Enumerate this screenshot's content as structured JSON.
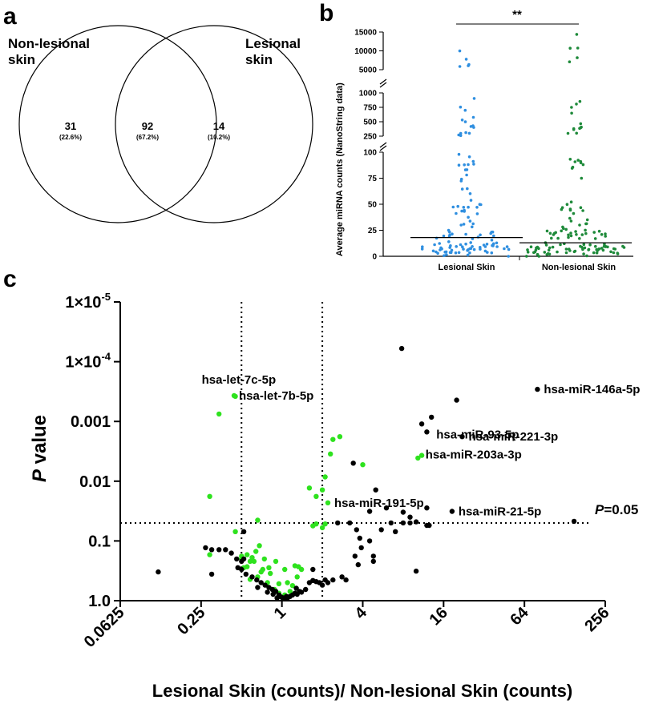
{
  "panels": {
    "a": "a",
    "b": "b",
    "c": "c"
  },
  "chart_data": [
    {
      "type": "venn",
      "sets": [
        "Non-lesional skin",
        "Lesional skin"
      ],
      "set_label_lines": {
        "left": [
          "Non-lesional",
          "skin"
        ],
        "right": [
          "Lesional",
          "skin"
        ]
      },
      "regions": [
        {
          "region": "non-lesional only",
          "count": "31",
          "percent": "(22.6%)"
        },
        {
          "region": "both",
          "count": "92",
          "percent": "(67.2%)"
        },
        {
          "region": "lesional only",
          "count": "14",
          "percent": "(10.2%)"
        }
      ]
    },
    {
      "type": "scatter",
      "ylabel": "Average miRNA counts (NanoString data)",
      "categories": [
        "Lesional Skin",
        "Non-lesional Skin"
      ],
      "y_axis_segments": [
        {
          "range": [
            0,
            100
          ],
          "ticks": [
            "0",
            "25",
            "50",
            "75",
            "100"
          ]
        },
        {
          "range": [
            250,
            1000
          ],
          "ticks": [
            "250",
            "500",
            "750",
            "1000"
          ]
        },
        {
          "range": [
            5000,
            15000
          ],
          "ticks": [
            "5000",
            "10000",
            "15000"
          ]
        }
      ],
      "medians": [
        18,
        13
      ],
      "significance": "**",
      "colors": [
        "#2f8fe0",
        "#1e8a3a"
      ]
    },
    {
      "type": "scatter",
      "xlabel": "Lesional Skin (counts)/ Non-lesional Skin (counts)",
      "ylabel_italic": "P",
      "ylabel_rest": " value",
      "x_scale": "log2",
      "y_scale": "log10-reversed",
      "xlim": [
        0.0625,
        256
      ],
      "ylim": [
        1.0,
        1e-05
      ],
      "x_ticks": [
        "0.0625",
        "0.25",
        "1",
        "4",
        "16",
        "64",
        "256"
      ],
      "y_ticks": [
        {
          "base": "1×10",
          "exp": "-5"
        },
        {
          "base": "1×10",
          "exp": "-4"
        },
        {
          "base": "0.001",
          "exp": ""
        },
        {
          "base": "0.01",
          "exp": ""
        },
        {
          "base": "0.1",
          "exp": ""
        },
        {
          "base": "1.0",
          "exp": ""
        }
      ],
      "thresholds": {
        "x": [
          0.5,
          2
        ],
        "p": 0.05
      },
      "p_note_italic": "P",
      "p_note_rest": "=0.05",
      "annotations": [
        {
          "label": "hsa-let-7c-5p",
          "x": 0.45,
          "p": 0.00038
        },
        {
          "label": "hsa-let-7b-5p",
          "x": 0.44,
          "p": 0.00037
        },
        {
          "label": "hsa-miR-146a-5p",
          "x": 80,
          "p": 0.00029
        },
        {
          "label": "hsa-miR-93-5p",
          "x": 13,
          "p": 0.0015
        },
        {
          "label": "hsa-miR-221-3p",
          "x": 22,
          "p": 0.0018
        },
        {
          "label": "hsa-miR-203a-3p",
          "x": 10.5,
          "p": 0.0036
        },
        {
          "label": "hsa-miR-191-5p",
          "x": 2.2,
          "p": 0.023
        },
        {
          "label": "hsa-miR-21-5p",
          "x": 18.5,
          "p": 0.032
        }
      ],
      "series": [
        {
          "color": "#2ee21e",
          "points": [
            [
              0.45,
              0.00038
            ],
            [
              0.44,
              0.00037
            ],
            [
              0.34,
              0.00075
            ],
            [
              10.3,
              0.0041
            ],
            [
              11,
              0.0037
            ],
            [
              2.4,
              0.002
            ],
            [
              2.7,
              0.0018
            ],
            [
              2.3,
              0.0035
            ],
            [
              4,
              0.0053
            ],
            [
              2.1,
              0.0085
            ],
            [
              2,
              0.014
            ],
            [
              1.8,
              0.018
            ],
            [
              1.6,
              0.013
            ],
            [
              1.7,
              0.056
            ],
            [
              1.8,
              0.052
            ],
            [
              2,
              0.06
            ],
            [
              2.1,
              0.052
            ],
            [
              2.2,
              0.023
            ],
            [
              0.29,
              0.018
            ],
            [
              0.29,
              0.17
            ],
            [
              0.45,
              0.07
            ],
            [
              0.66,
              0.045
            ],
            [
              0.6,
              0.19
            ],
            [
              0.68,
              0.12
            ],
            [
              0.62,
              0.22
            ],
            [
              0.7,
              0.33
            ],
            [
              0.55,
              0.27
            ],
            [
              0.58,
              0.22
            ],
            [
              0.5,
              0.18
            ],
            [
              0.74,
              0.2
            ],
            [
              0.9,
              0.22
            ],
            [
              0.82,
              0.35
            ],
            [
              1.05,
              0.3
            ],
            [
              1.25,
              0.26
            ],
            [
              1.33,
              0.27
            ],
            [
              1.4,
              0.3
            ],
            [
              1.3,
              0.4
            ],
            [
              0.95,
              0.52
            ],
            [
              1.1,
              0.5
            ],
            [
              1.2,
              0.56
            ],
            [
              0.78,
              0.5
            ],
            [
              0.88,
              0.65
            ],
            [
              0.95,
              0.75
            ],
            [
              1.05,
              0.8
            ],
            [
              1.15,
              0.7
            ],
            [
              0.72,
              0.3
            ],
            [
              0.8,
              0.28
            ],
            [
              0.64,
              0.15
            ],
            [
              0.66,
              0.4
            ],
            [
              0.58,
              0.44
            ],
            [
              0.55,
              0.17
            ],
            [
              0.5,
              0.2
            ],
            [
              0.52,
              0.28
            ]
          ]
        },
        {
          "color": "#000000",
          "points": [
            [
              7.8,
              6e-05
            ],
            [
              20,
              0.00044
            ],
            [
              13,
              0.00085
            ],
            [
              11,
              0.0011
            ],
            [
              12,
              0.0015
            ],
            [
              80,
              0.00029
            ],
            [
              22,
              0.0018
            ],
            [
              3.4,
              0.005
            ],
            [
              5,
              0.014
            ],
            [
              4.5,
              0.032
            ],
            [
              6,
              0.028
            ],
            [
              8,
              0.033
            ],
            [
              9,
              0.04
            ],
            [
              10,
              0.048
            ],
            [
              12,
              0.028
            ],
            [
              18.5,
              0.032
            ],
            [
              12.5,
              0.055
            ],
            [
              150,
              0.047
            ],
            [
              5.5,
              0.065
            ],
            [
              6.5,
              0.05
            ],
            [
              7,
              0.07
            ],
            [
              8,
              0.05
            ],
            [
              9,
              0.05
            ],
            [
              3.2,
              0.05
            ],
            [
              3.6,
              0.065
            ],
            [
              3.8,
              0.09
            ],
            [
              2.6,
              0.05
            ],
            [
              4.5,
              0.1
            ],
            [
              4.8,
              0.18
            ],
            [
              4.8,
              0.22
            ],
            [
              3.5,
              0.18
            ],
            [
              3.7,
              0.25
            ],
            [
              3.9,
              0.13
            ],
            [
              10,
              0.32
            ],
            [
              12,
              0.055
            ],
            [
              3,
              0.45
            ],
            [
              2.8,
              0.4
            ],
            [
              0.12,
              0.33
            ],
            [
              0.3,
              0.14
            ],
            [
              0.34,
              0.14
            ],
            [
              0.42,
              0.16
            ],
            [
              0.46,
              0.2
            ],
            [
              0.5,
              0.22
            ],
            [
              0.52,
              0.2
            ],
            [
              0.47,
              0.28
            ],
            [
              0.5,
              0.3
            ],
            [
              0.54,
              0.36
            ],
            [
              0.52,
              0.07
            ],
            [
              0.38,
              0.14
            ],
            [
              0.3,
              0.36
            ],
            [
              0.27,
              0.13
            ],
            [
              0.6,
              0.4
            ],
            [
              0.65,
              0.45
            ],
            [
              0.7,
              0.5
            ],
            [
              0.75,
              0.55
            ],
            [
              0.8,
              0.6
            ],
            [
              0.85,
              0.65
            ],
            [
              0.9,
              0.7
            ],
            [
              0.95,
              0.8
            ],
            [
              0.97,
              0.85
            ],
            [
              1,
              0.88
            ],
            [
              1.02,
              0.9
            ],
            [
              1.05,
              0.92
            ],
            [
              1.1,
              0.9
            ],
            [
              1.15,
              0.85
            ],
            [
              1.2,
              0.8
            ],
            [
              1.25,
              0.75
            ],
            [
              1.3,
              0.78
            ],
            [
              1.35,
              0.7
            ],
            [
              1.4,
              0.72
            ],
            [
              1.5,
              0.65
            ],
            [
              1.6,
              0.5
            ],
            [
              1.7,
              0.46
            ],
            [
              1.8,
              0.48
            ],
            [
              1.9,
              0.5
            ],
            [
              2,
              0.55
            ],
            [
              2.1,
              0.45
            ],
            [
              2.2,
              0.5
            ],
            [
              2.4,
              0.45
            ],
            [
              1.7,
              0.3
            ],
            [
              0.92,
              0.9
            ],
            [
              1.08,
              0.85
            ],
            [
              1.28,
              0.62
            ],
            [
              0.86,
              0.78
            ],
            [
              0.78,
              0.72
            ],
            [
              0.66,
              0.6
            ]
          ]
        }
      ]
    }
  ]
}
